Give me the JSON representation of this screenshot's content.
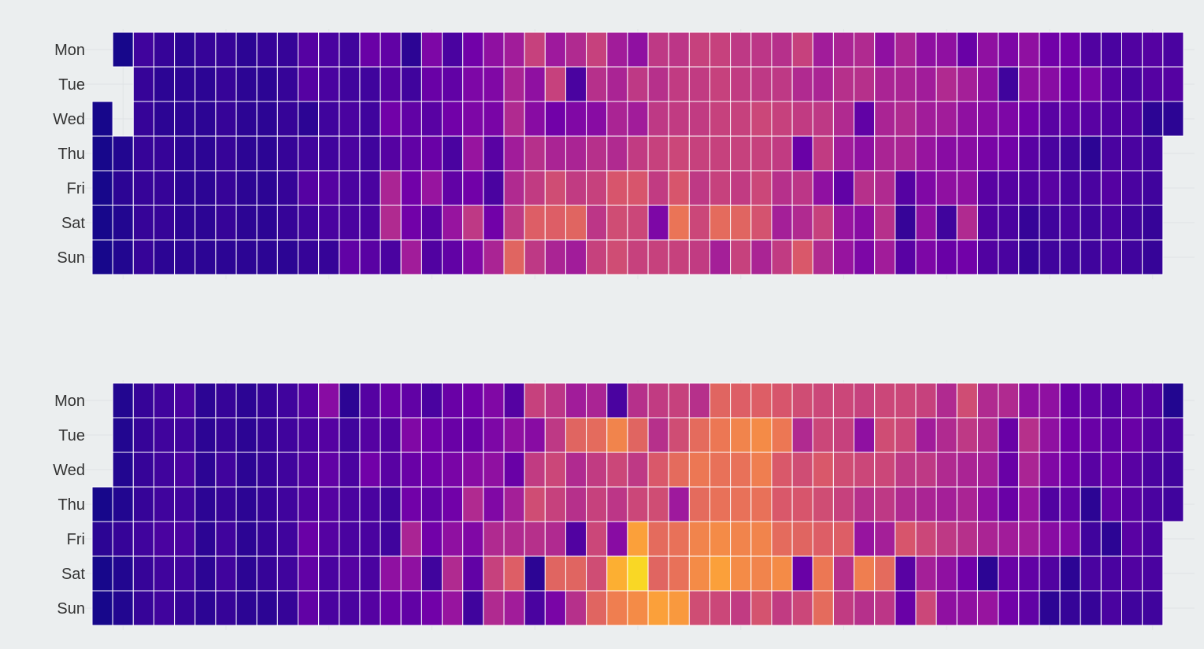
{
  "colors": {
    "background": "#ebeeef",
    "cell_border": "#ffffff",
    "colormap": "plasma",
    "colormap_stops": [
      "#0d0887",
      "#46039f",
      "#7201a8",
      "#9c179e",
      "#bd3786",
      "#d8576b",
      "#ed7953",
      "#fb9f3a",
      "#fdca26",
      "#f0f921"
    ]
  },
  "chart_data": [
    {
      "type": "heatmap",
      "title": "",
      "xlabel": "",
      "ylabel": "",
      "rows": [
        "Mon",
        "Tue",
        "Wed",
        "Thu",
        "Fri",
        "Sat",
        "Sun"
      ],
      "columns": 53,
      "value_range": [
        0,
        1
      ],
      "legend": "none",
      "grid": true,
      "values": [
        [
          null,
          0.02,
          0.1,
          0.08,
          0.06,
          0.08,
          0.08,
          0.06,
          0.08,
          0.08,
          0.15,
          0.12,
          0.1,
          0.2,
          0.18,
          0.06,
          0.25,
          0.12,
          0.22,
          0.3,
          0.35,
          0.48,
          0.34,
          0.4,
          0.48,
          0.35,
          0.3,
          0.45,
          0.44,
          0.48,
          0.48,
          0.45,
          0.44,
          0.42,
          0.48,
          0.35,
          0.38,
          0.4,
          0.3,
          0.38,
          0.3,
          0.3,
          0.2,
          0.3,
          0.25,
          0.3,
          0.22,
          0.22,
          0.14,
          0.12,
          0.14,
          0.15,
          0.12
        ],
        [
          null,
          null,
          0.08,
          0.06,
          0.06,
          0.06,
          0.08,
          0.06,
          0.06,
          0.08,
          0.15,
          0.12,
          0.1,
          0.1,
          0.15,
          0.1,
          0.2,
          0.18,
          0.25,
          0.26,
          0.38,
          0.3,
          0.48,
          0.12,
          0.42,
          0.38,
          0.45,
          0.42,
          0.46,
          0.46,
          0.48,
          0.46,
          0.45,
          0.45,
          0.4,
          0.38,
          0.42,
          0.42,
          0.38,
          0.38,
          0.35,
          0.4,
          0.36,
          0.3,
          0.1,
          0.3,
          0.28,
          0.22,
          0.24,
          0.16,
          0.12,
          0.15,
          0.15
        ],
        [
          0.02,
          null,
          0.08,
          0.06,
          0.06,
          0.06,
          0.08,
          0.06,
          0.06,
          0.08,
          0.06,
          0.1,
          0.12,
          0.1,
          0.22,
          0.18,
          0.16,
          0.22,
          0.25,
          0.24,
          0.4,
          0.28,
          0.22,
          0.26,
          0.28,
          0.38,
          0.35,
          0.45,
          0.46,
          0.46,
          0.48,
          0.48,
          0.5,
          0.48,
          0.46,
          0.45,
          0.4,
          0.18,
          0.38,
          0.4,
          0.35,
          0.35,
          0.3,
          0.28,
          0.25,
          0.22,
          0.16,
          0.18,
          0.16,
          0.14,
          0.14,
          0.06,
          0.06
        ],
        [
          0.02,
          0.04,
          0.08,
          0.08,
          0.06,
          0.06,
          0.08,
          0.06,
          0.06,
          0.08,
          0.1,
          0.1,
          0.12,
          0.1,
          0.15,
          0.18,
          0.2,
          0.12,
          0.32,
          0.16,
          0.35,
          0.42,
          0.38,
          0.38,
          0.42,
          0.4,
          0.46,
          0.48,
          0.5,
          0.48,
          0.48,
          0.48,
          0.48,
          0.46,
          0.2,
          0.46,
          0.35,
          0.3,
          0.38,
          0.38,
          0.32,
          0.28,
          0.28,
          0.24,
          0.22,
          0.16,
          0.12,
          0.1,
          0.06,
          0.12,
          0.12,
          0.1,
          null
        ],
        [
          0.02,
          0.06,
          0.08,
          0.08,
          0.06,
          0.06,
          0.08,
          0.06,
          0.06,
          0.08,
          0.15,
          0.15,
          0.12,
          0.12,
          0.38,
          0.22,
          0.32,
          0.18,
          0.22,
          0.12,
          0.4,
          0.46,
          0.52,
          0.46,
          0.48,
          0.55,
          0.55,
          0.46,
          0.55,
          0.45,
          0.48,
          0.46,
          0.5,
          0.42,
          0.44,
          0.3,
          0.18,
          0.42,
          0.4,
          0.15,
          0.26,
          0.3,
          0.3,
          0.16,
          0.15,
          0.14,
          0.16,
          0.12,
          0.12,
          0.15,
          0.12,
          0.1,
          null
        ],
        [
          0.02,
          0.04,
          0.08,
          0.08,
          0.06,
          0.06,
          0.08,
          0.06,
          0.06,
          0.08,
          0.1,
          0.12,
          0.12,
          0.12,
          0.4,
          0.22,
          0.16,
          0.32,
          0.45,
          0.22,
          0.45,
          0.58,
          0.58,
          0.6,
          0.44,
          0.52,
          0.5,
          0.25,
          0.65,
          0.5,
          0.62,
          0.6,
          0.54,
          0.36,
          0.4,
          0.48,
          0.32,
          0.28,
          0.42,
          0.08,
          0.3,
          0.1,
          0.4,
          0.14,
          0.12,
          0.08,
          0.1,
          0.12,
          0.1,
          0.12,
          0.1,
          0.08,
          null
        ],
        [
          0.02,
          0.04,
          0.08,
          0.06,
          0.06,
          0.06,
          0.06,
          0.06,
          0.06,
          0.06,
          0.08,
          0.08,
          0.18,
          0.16,
          0.12,
          0.35,
          0.14,
          0.18,
          0.26,
          0.38,
          0.6,
          0.45,
          0.38,
          0.35,
          0.48,
          0.52,
          0.48,
          0.48,
          0.48,
          0.46,
          0.36,
          0.48,
          0.38,
          0.46,
          0.56,
          0.4,
          0.32,
          0.25,
          0.35,
          0.16,
          0.25,
          0.2,
          0.22,
          0.14,
          0.12,
          0.08,
          0.1,
          0.1,
          0.1,
          0.12,
          0.1,
          0.08,
          null
        ]
      ]
    },
    {
      "type": "heatmap",
      "title": "",
      "xlabel": "",
      "ylabel": "",
      "rows": [
        "Mon",
        "Tue",
        "Wed",
        "Thu",
        "Fri",
        "Sat",
        "Sun"
      ],
      "columns": 53,
      "value_range": [
        0,
        1
      ],
      "legend": "none",
      "grid": true,
      "values": [
        [
          null,
          0.04,
          0.08,
          0.1,
          0.12,
          0.06,
          0.08,
          0.06,
          0.08,
          0.1,
          0.15,
          0.28,
          0.06,
          0.15,
          0.2,
          0.18,
          0.12,
          0.2,
          0.22,
          0.26,
          0.15,
          0.48,
          0.44,
          0.35,
          0.38,
          0.12,
          0.42,
          0.46,
          0.48,
          0.42,
          0.6,
          0.58,
          0.58,
          0.55,
          0.52,
          0.5,
          0.5,
          0.48,
          0.5,
          0.5,
          0.48,
          0.4,
          0.52,
          0.4,
          0.4,
          0.3,
          0.3,
          0.2,
          0.18,
          0.15,
          0.18,
          0.15,
          0.04
        ],
        [
          null,
          0.04,
          0.08,
          0.1,
          0.1,
          0.06,
          0.08,
          0.06,
          0.08,
          0.1,
          0.12,
          0.15,
          0.1,
          0.15,
          0.14,
          0.26,
          0.22,
          0.2,
          0.2,
          0.25,
          0.3,
          0.28,
          0.45,
          0.6,
          0.62,
          0.7,
          0.6,
          0.42,
          0.52,
          0.62,
          0.66,
          0.7,
          0.72,
          0.66,
          0.4,
          0.5,
          0.48,
          0.3,
          0.52,
          0.5,
          0.35,
          0.4,
          0.45,
          0.4,
          0.2,
          0.42,
          0.3,
          0.22,
          0.2,
          0.18,
          0.2,
          0.15,
          0.12
        ],
        [
          null,
          0.04,
          0.08,
          0.1,
          0.12,
          0.06,
          0.1,
          0.06,
          0.08,
          0.1,
          0.14,
          0.18,
          0.12,
          0.22,
          0.16,
          0.2,
          0.22,
          0.24,
          0.28,
          0.3,
          0.2,
          0.46,
          0.5,
          0.4,
          0.46,
          0.5,
          0.45,
          0.56,
          0.62,
          0.66,
          0.64,
          0.64,
          0.68,
          0.56,
          0.52,
          0.56,
          0.52,
          0.5,
          0.5,
          0.45,
          0.45,
          0.4,
          0.38,
          0.36,
          0.2,
          0.38,
          0.26,
          0.22,
          0.16,
          0.2,
          0.16,
          0.12,
          0.1
        ],
        [
          0.02,
          0.04,
          0.08,
          0.1,
          0.1,
          0.06,
          0.08,
          0.06,
          0.08,
          0.1,
          0.14,
          0.15,
          0.12,
          0.12,
          0.1,
          0.22,
          0.18,
          0.22,
          0.4,
          0.26,
          0.36,
          0.52,
          0.48,
          0.42,
          0.48,
          0.44,
          0.5,
          0.52,
          0.34,
          0.62,
          0.64,
          0.64,
          0.64,
          0.56,
          0.55,
          0.52,
          0.48,
          0.42,
          0.45,
          0.4,
          0.38,
          0.36,
          0.38,
          0.3,
          0.2,
          0.32,
          0.14,
          0.18,
          0.06,
          0.18,
          0.16,
          0.12,
          0.1
        ],
        [
          0.06,
          0.08,
          0.1,
          0.12,
          0.12,
          0.06,
          0.1,
          0.06,
          0.08,
          0.1,
          0.2,
          0.15,
          0.12,
          0.12,
          0.1,
          0.38,
          0.22,
          0.3,
          0.26,
          0.4,
          0.4,
          0.42,
          0.4,
          0.14,
          0.5,
          0.28,
          0.78,
          0.62,
          0.64,
          0.7,
          0.72,
          0.7,
          0.7,
          0.62,
          0.6,
          0.58,
          0.58,
          0.32,
          0.36,
          0.55,
          0.5,
          0.45,
          0.42,
          0.38,
          0.35,
          0.35,
          0.28,
          0.26,
          0.1,
          0.06,
          0.16,
          0.12,
          null
        ],
        [
          0.02,
          0.04,
          0.08,
          0.1,
          0.1,
          0.06,
          0.1,
          0.06,
          0.08,
          0.1,
          0.18,
          0.12,
          0.15,
          0.12,
          0.3,
          0.3,
          0.1,
          0.4,
          0.18,
          0.48,
          0.58,
          0.06,
          0.6,
          0.6,
          0.52,
          0.82,
          0.92,
          0.6,
          0.64,
          0.72,
          0.78,
          0.72,
          0.7,
          0.72,
          0.2,
          0.66,
          0.42,
          0.68,
          0.62,
          0.16,
          0.36,
          0.3,
          0.22,
          0.06,
          0.2,
          0.18,
          0.14,
          0.06,
          0.12,
          0.12,
          0.14,
          0.12,
          null
        ],
        [
          0.02,
          0.04,
          0.08,
          0.1,
          0.08,
          0.06,
          0.08,
          0.06,
          0.06,
          0.08,
          0.18,
          0.12,
          0.12,
          0.15,
          0.2,
          0.18,
          0.22,
          0.32,
          0.1,
          0.4,
          0.35,
          0.12,
          0.24,
          0.42,
          0.6,
          0.68,
          0.72,
          0.78,
          0.76,
          0.52,
          0.5,
          0.46,
          0.54,
          0.46,
          0.5,
          0.62,
          0.46,
          0.42,
          0.44,
          0.2,
          0.5,
          0.3,
          0.3,
          0.32,
          0.22,
          0.18,
          0.06,
          0.08,
          0.08,
          0.12,
          0.1,
          0.1,
          null
        ]
      ]
    }
  ]
}
